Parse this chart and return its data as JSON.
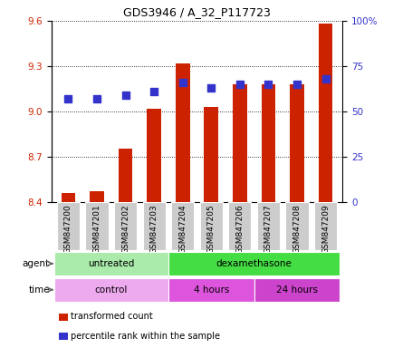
{
  "title": "GDS3946 / A_32_P117723",
  "samples": [
    "GSM847200",
    "GSM847201",
    "GSM847202",
    "GSM847203",
    "GSM847204",
    "GSM847205",
    "GSM847206",
    "GSM847207",
    "GSM847208",
    "GSM847209"
  ],
  "transformed_count": [
    8.46,
    8.47,
    8.75,
    9.02,
    9.32,
    9.03,
    9.18,
    9.18,
    9.18,
    9.58
  ],
  "percentile_rank": [
    57,
    57,
    59,
    61,
    66,
    63,
    65,
    65,
    65,
    68
  ],
  "ylim_left": [
    8.4,
    9.6
  ],
  "ylim_right": [
    0,
    100
  ],
  "yticks_left": [
    8.4,
    8.7,
    9.0,
    9.3,
    9.6
  ],
  "yticks_right": [
    0,
    25,
    50,
    75,
    100
  ],
  "ytick_labels_right": [
    "0",
    "25",
    "50",
    "75",
    "100%"
  ],
  "bar_color": "#cc2200",
  "dot_color": "#3333cc",
  "agent_groups": [
    {
      "label": "untreated",
      "start": 0,
      "end": 4,
      "color": "#aaeaaa"
    },
    {
      "label": "dexamethasone",
      "start": 4,
      "end": 10,
      "color": "#44dd44"
    }
  ],
  "time_groups": [
    {
      "label": "control",
      "start": 0,
      "end": 4,
      "color": "#eeaaee"
    },
    {
      "label": "4 hours",
      "start": 4,
      "end": 7,
      "color": "#dd55dd"
    },
    {
      "label": "24 hours",
      "start": 7,
      "end": 10,
      "color": "#cc44cc"
    }
  ],
  "legend_items": [
    {
      "color": "#cc2200",
      "label": "transformed count"
    },
    {
      "color": "#3333cc",
      "label": "percentile rank within the sample"
    }
  ],
  "grid_color": "#000000",
  "tick_color_left": "#cc2200",
  "tick_color_right": "#3333cc",
  "bar_width": 0.5,
  "dot_size": 28,
  "background_color": "#ffffff",
  "plot_background": "#ffffff",
  "agent_label": "agent",
  "time_label": "time",
  "xticklabel_bg": "#cccccc"
}
